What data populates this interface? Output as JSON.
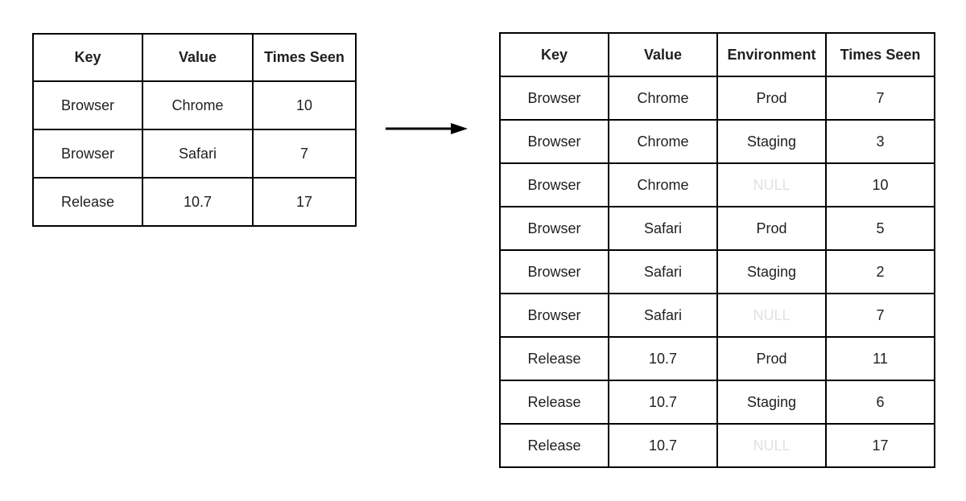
{
  "canvas": {
    "background": "#ffffff"
  },
  "colors": {
    "border": "#000000",
    "text": "#1f1f1f",
    "null_text": "#e1e1e3",
    "arrow": "#000000",
    "background": "#ffffff"
  },
  "icons": {
    "arrow": "right-arrow"
  },
  "left_table": {
    "headers": [
      "Key",
      "Value",
      "Times Seen"
    ],
    "rows": [
      [
        "Browser",
        "Chrome",
        "10"
      ],
      [
        "Browser",
        "Safari",
        "7"
      ],
      [
        "Release",
        "10.7",
        "17"
      ]
    ]
  },
  "right_table": {
    "headers": [
      "Key",
      "Value",
      "Environment",
      "Times Seen"
    ],
    "rows": [
      [
        "Browser",
        "Chrome",
        "Prod",
        "7"
      ],
      [
        "Browser",
        "Chrome",
        "Staging",
        "3"
      ],
      [
        "Browser",
        "Chrome",
        "NULL",
        "10"
      ],
      [
        "Browser",
        "Safari",
        "Prod",
        "5"
      ],
      [
        "Browser",
        "Safari",
        "Staging",
        "2"
      ],
      [
        "Browser",
        "Safari",
        "NULL",
        "7"
      ],
      [
        "Release",
        "10.7",
        "Prod",
        "11"
      ],
      [
        "Release",
        "10.7",
        "Staging",
        "6"
      ],
      [
        "Release",
        "10.7",
        "NULL",
        "17"
      ]
    ]
  },
  "null_value_text": "NULL"
}
